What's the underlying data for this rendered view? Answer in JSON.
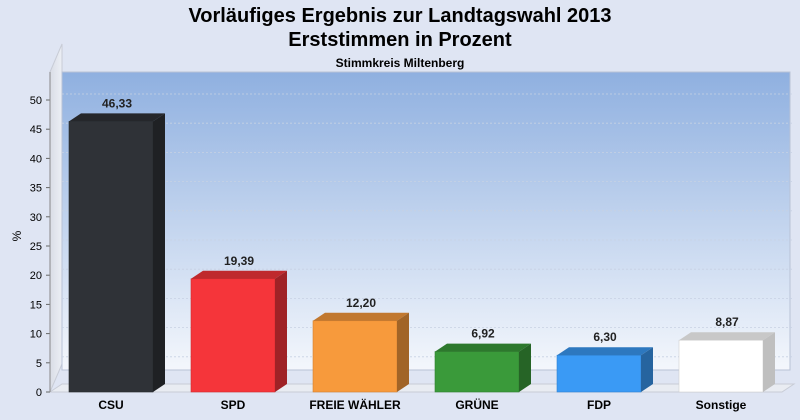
{
  "title_line1": "Vorläufiges Ergebnis zur Landtagswahl 2013",
  "title_line2": "Erststimmen in Prozent",
  "subtitle": "Stimmkreis Miltenberg",
  "chart_data": {
    "type": "bar",
    "title": "Vorläufiges Ergebnis zur Landtagswahl 2013 / Erststimmen in Prozent",
    "subtitle": "Stimmkreis Miltenberg",
    "ylabel": "%",
    "ylim": [
      0,
      50
    ],
    "yticks": [
      0,
      5,
      10,
      15,
      20,
      25,
      30,
      35,
      40,
      45,
      50
    ],
    "categories": [
      "CSU",
      "SPD",
      "FREIE WÄHLER",
      "GRÜNE",
      "FDP",
      "Sonstige"
    ],
    "values": [
      46.33,
      19.39,
      12.2,
      6.92,
      6.3,
      8.87
    ],
    "value_labels": [
      "46,33",
      "19,39",
      "12,20",
      "6,92",
      "6,30",
      "8,87"
    ],
    "colors": [
      "#2f3237",
      "#f5353a",
      "#f79a3c",
      "#3a9a3a",
      "#3a9af5",
      "#ffffff"
    ],
    "grid": true
  }
}
